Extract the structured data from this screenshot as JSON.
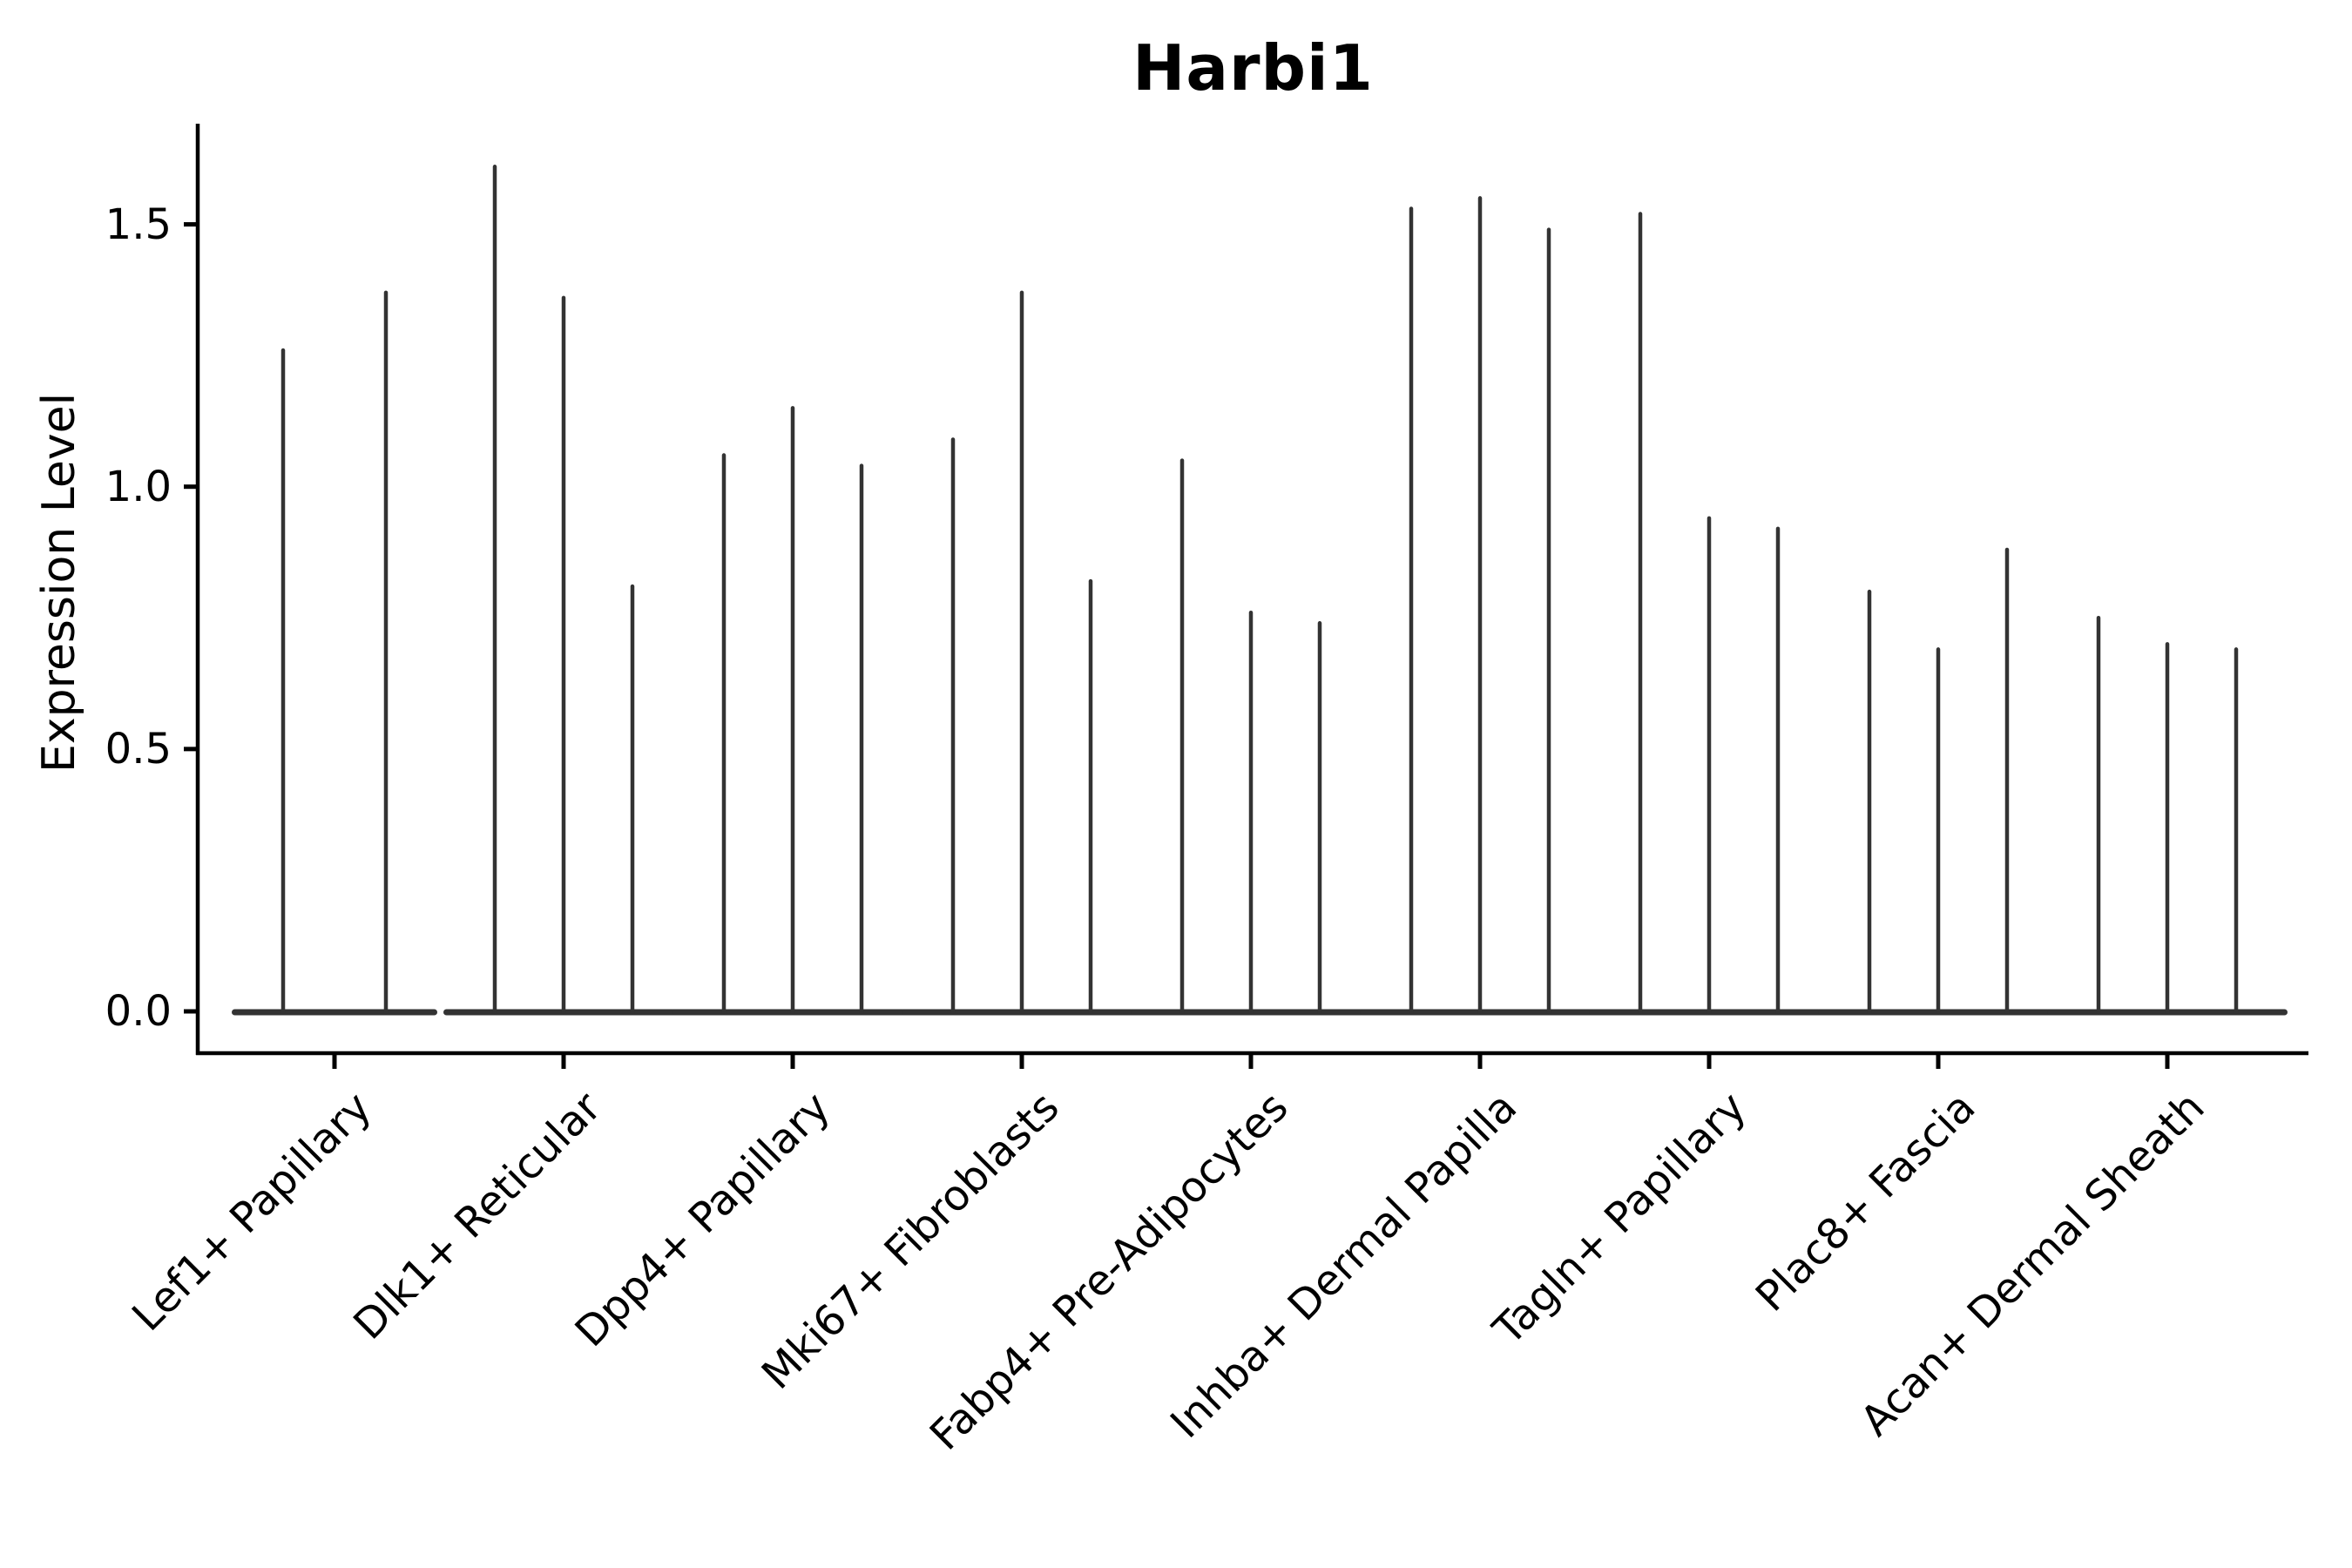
{
  "chart_data": {
    "type": "violin",
    "title": "Harbi1",
    "ylabel": "Expression Level",
    "xlabel": "",
    "ylim": [
      -0.08,
      1.69
    ],
    "yticks": [
      0.0,
      0.5,
      1.0,
      1.5
    ],
    "ytick_labels": [
      "0.0",
      "0.5",
      "1.0",
      "1.5"
    ],
    "grid": false,
    "legend": false,
    "layout_hint": "needle-thin black violins with flat merged bases at y=0; 2-3 violins per category; x labels rotated 45deg",
    "colors": {
      "violin": "#333333",
      "axis": "#000000",
      "background": "#ffffff"
    },
    "categories": [
      "Lef1+ Papillary",
      "Dlk1+ Reticular",
      "Dpp4+ Papillary",
      "Mki67+ Fibroblasts",
      "Fabp4+ Pre-Adipocytes",
      "Inhba+ Dermal Papilla",
      "Tagln+ Papillary",
      "Plac8+ Fascia",
      "Acan+ Dermal Sheath"
    ],
    "series": [
      {
        "category": "Lef1+ Papillary",
        "violin_peaks": [
          1.26,
          1.37
        ]
      },
      {
        "category": "Dlk1+ Reticular",
        "violin_peaks": [
          1.61,
          1.36,
          0.81
        ]
      },
      {
        "category": "Dpp4+ Papillary",
        "violin_peaks": [
          1.06,
          1.15,
          1.04
        ]
      },
      {
        "category": "Mki67+ Fibroblasts",
        "violin_peaks": [
          1.09,
          1.37,
          0.82
        ]
      },
      {
        "category": "Fabp4+ Pre-Adipocytes",
        "violin_peaks": [
          1.05,
          0.76,
          0.74
        ]
      },
      {
        "category": "Inhba+ Dermal Papilla",
        "violin_peaks": [
          1.53,
          1.55,
          1.49
        ]
      },
      {
        "category": "Tagln+ Papillary",
        "violin_peaks": [
          1.52,
          0.94,
          0.92
        ]
      },
      {
        "category": "Plac8+ Fascia",
        "violin_peaks": [
          0.8,
          0.69,
          0.88
        ]
      },
      {
        "category": "Acan+ Dermal Sheath",
        "violin_peaks": [
          0.75,
          0.7,
          0.69
        ]
      }
    ]
  }
}
